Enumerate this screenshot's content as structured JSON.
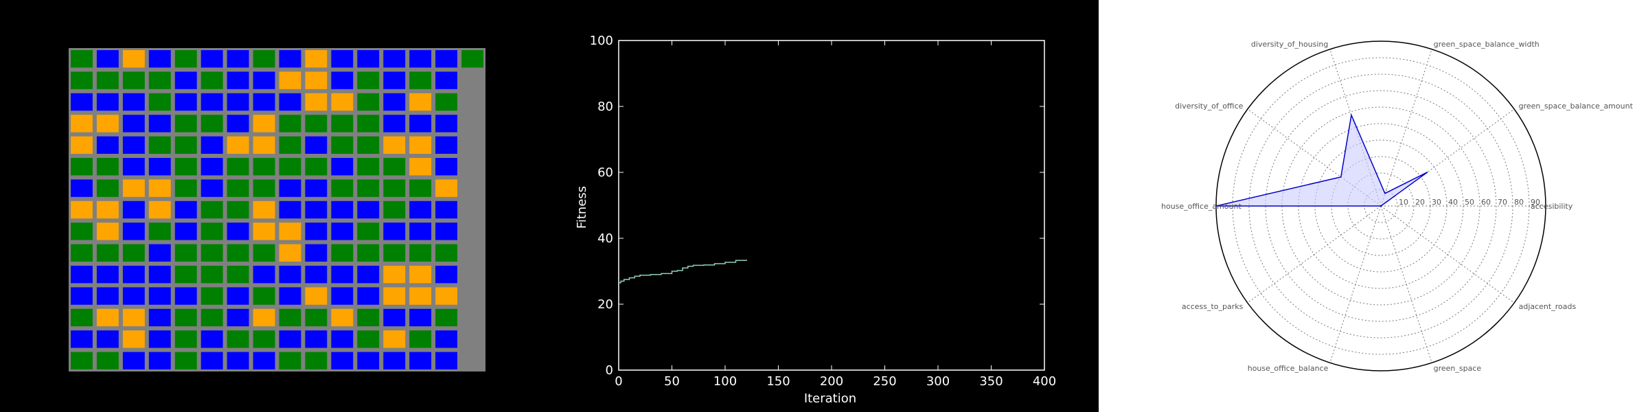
{
  "colors": {
    "blue": "#0000ff",
    "green": "#008000",
    "orange": "#ffa500",
    "road": "#808080",
    "fitness_line": "#8fd1b7",
    "radar_line": "#0000cc",
    "radar_fill": "#ccccff"
  },
  "grid_map": {
    "legend": "B=blue, G=green, O=orange",
    "blocks": [
      "GBOBGBBGBOBBBBBG",
      "GGGGBGBBOOBGBGB",
      "BBBGBBBBBOOGBOG",
      "OOBBGGBOGGGGBBB",
      "OBBGGBOOGBGGOOB",
      "GGBBGBGGGGBGGOB",
      "BGOOGBGGBBGGGGO",
      "OOBOBGGOBBBBGBB",
      "GOBGBGBOOBBGBBB",
      "GGGBGGGGOBGGGGG",
      "BBBBGGGBBBBBOOB",
      "BBBBBGBGBOBBOOO",
      "GOOBGGBOGGOGBBG",
      "BBOBGBGGBBBGOGB",
      "GGBBGBBBGGBBBBB"
    ]
  },
  "chart_data": [
    {
      "type": "line",
      "xlabel": "Iteration",
      "ylabel": "Fitness",
      "xlim": [
        0,
        400
      ],
      "ylim": [
        0,
        100
      ],
      "xticks": [
        "0",
        "50",
        "100",
        "150",
        "200",
        "250",
        "300",
        "350",
        "400"
      ],
      "yticks": [
        "0",
        "20",
        "40",
        "60",
        "80",
        "100"
      ],
      "x": [
        0,
        2,
        5,
        10,
        15,
        20,
        30,
        40,
        50,
        55,
        60,
        65,
        70,
        80,
        90,
        100,
        110,
        120
      ],
      "y": [
        26.5,
        27.0,
        27.5,
        28.0,
        28.5,
        28.8,
        29.0,
        29.3,
        30.0,
        30.2,
        31.0,
        31.5,
        31.8,
        31.9,
        32.3,
        32.7,
        33.3,
        33.5
      ]
    },
    {
      "type": "radar",
      "categories": [
        "accesibility",
        "green_space_balance_amount",
        "green_space_balance_width",
        "diversity_of_housing",
        "diversity_of_office",
        "house_office_amount",
        "access_to_parks",
        "house_office_balance",
        "green_space",
        "adjacent_roads"
      ],
      "values": [
        0,
        35,
        8,
        58,
        30,
        100,
        0,
        0,
        0,
        0
      ],
      "rlim": [
        0,
        100
      ],
      "rticks": [
        "10",
        "20",
        "30",
        "40",
        "50",
        "60",
        "70",
        "80",
        "90"
      ]
    }
  ]
}
